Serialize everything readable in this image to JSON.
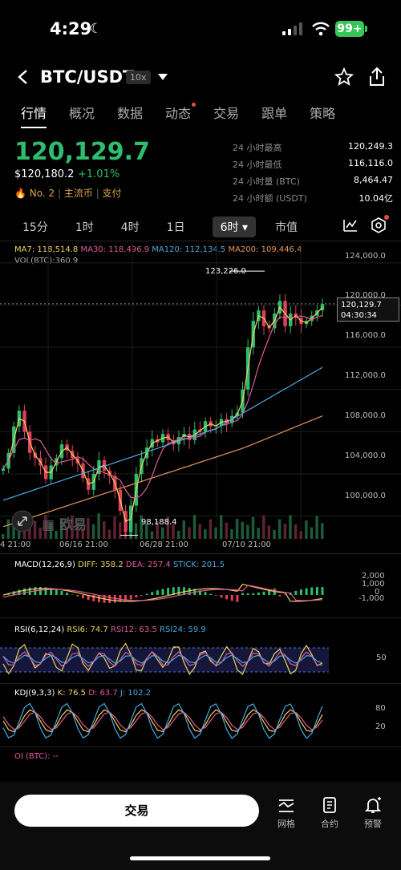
{
  "status_bar": {
    "time": "4:29",
    "battery": "99+"
  },
  "header": {
    "pair": "BTC/USDT",
    "leverage": "10x"
  },
  "tabs": [
    "行情",
    "概况",
    "数据",
    "动态",
    "交易",
    "跟单",
    "策略"
  ],
  "price": {
    "last": "120,129.7",
    "usd": "$120,180.2",
    "change": "+1.01%",
    "rank": "No. 2",
    "tag1": "主流币",
    "tag2": "支付"
  },
  "stats": [
    {
      "k": "24 小时最高",
      "v": "120,249.3"
    },
    {
      "k": "24 小时最低",
      "v": "116,116.0"
    },
    {
      "k": "24 小时量 (BTC)",
      "v": "8,464.47"
    },
    {
      "k": "24 小时额 (USDT)",
      "v": "10.04亿"
    }
  ],
  "timeframes": {
    "t1": "15分",
    "t2": "1时",
    "t3": "4时",
    "t4": "1日",
    "selected": "6时",
    "t6": "市值"
  },
  "ma": {
    "ma7": "MA7: 118,514.8",
    "ma30": "MA30: 118,496.9",
    "ma120": "MA120: 112,134.5",
    "ma200": "MA200: 109,446.4",
    "vol": "VOL(BTC):360.9"
  },
  "colors": {
    "up": "#2ebd6e",
    "down": "#e0405a",
    "ma7": "#f0d35c",
    "ma30": "#e05a9a",
    "ma120": "#4aa8e0",
    "ma200": "#e8955a"
  },
  "chart_data": {
    "type": "candlestick",
    "y_ticks": [
      "124,000.0",
      "120,000.0",
      "116,000.0",
      "112,000.0",
      "108,000.0",
      "104,000.0",
      "100,000.0"
    ],
    "x_ticks": [
      "4 21:00",
      "06/16 21:00",
      "06/28 21:00",
      "07/10 21:00"
    ],
    "high_marker": "123,226.0",
    "low_marker": "98,188.4",
    "current_price": "120,129.7",
    "countdown": "04:30:34",
    "watermark": "欧易",
    "ylim": [
      98000,
      124600
    ],
    "close_series": [
      104500,
      106000,
      108500,
      110000,
      108000,
      106000,
      105500,
      104800,
      103500,
      104800,
      105500,
      106800,
      106200,
      105500,
      105000,
      103600,
      102500,
      104000,
      105300,
      104300,
      103800,
      102500,
      100500,
      98500,
      101000,
      104000,
      105500,
      106500,
      107300,
      107000,
      107800,
      107200,
      106800,
      107500,
      107800,
      107200,
      108200,
      108000,
      109000,
      108500,
      108600,
      109200,
      108800,
      109500,
      109800,
      112000,
      116000,
      118500,
      119500,
      118000,
      117800,
      119200,
      120400,
      118000,
      119200,
      118800,
      118200,
      118500,
      119000,
      119500,
      120100
    ]
  },
  "macd": {
    "label": "MACD(12,26,9)",
    "diff": "DIFF: 358.2",
    "dea": "DEA: 257.4",
    "stick": "STICK: 201.5",
    "ticks": [
      "2,000",
      "1,000",
      "0",
      "-1,000"
    ]
  },
  "rsi": {
    "label": "RSI(6,12,24)",
    "rsi6": "RSI6: 74.7",
    "rsi12": "RSI12: 63.5",
    "rsi24": "RSI24: 59.9",
    "tick": "50"
  },
  "kdj": {
    "label": "KDJ(9,3,3)",
    "k": "K: 76.5",
    "d": "D: 63.7",
    "j": "J: 102.2",
    "ticks": [
      "80",
      "20"
    ]
  },
  "oi": {
    "label": "OI (BTC): --"
  },
  "bottom": {
    "trade": "交易",
    "grid": "网格",
    "contract": "合约",
    "alert": "预警"
  }
}
